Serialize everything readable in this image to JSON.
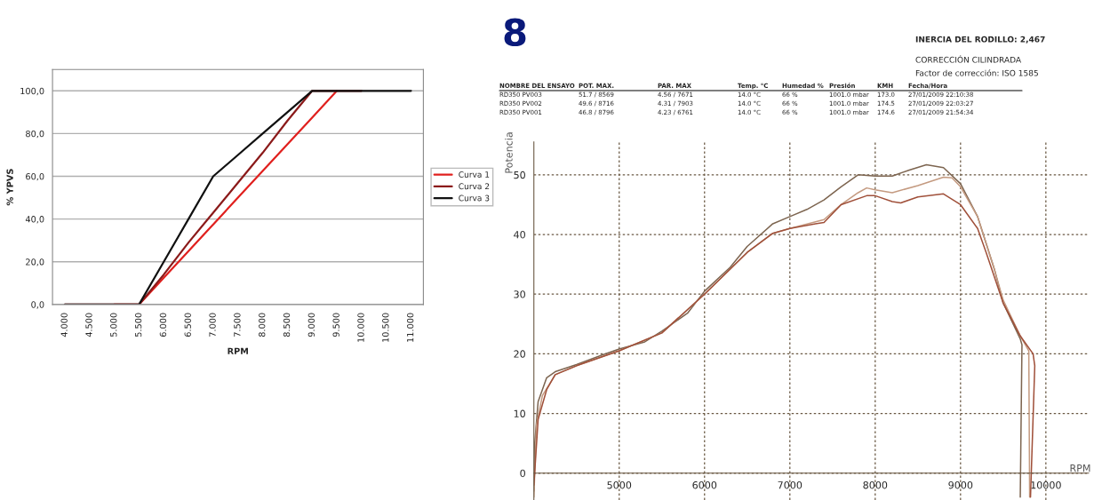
{
  "chart_data": [
    {
      "type": "line",
      "xlabel": "RPM",
      "ylabel": "% YPVS",
      "ylim": [
        0,
        110
      ],
      "categories": [
        "4.000",
        "4.500",
        "5.000",
        "5.500",
        "6.000",
        "6.500",
        "7.000",
        "7.500",
        "8.000",
        "8.500",
        "9.000",
        "9.500",
        "10.000",
        "10.500",
        "11.000"
      ],
      "yticks": [
        {
          "value": 0,
          "label": "0,0"
        },
        {
          "value": 20,
          "label": "20,0"
        },
        {
          "value": 40,
          "label": "40,0"
        },
        {
          "value": 60,
          "label": "60,0"
        },
        {
          "value": 80,
          "label": "80,0"
        },
        {
          "value": 100,
          "label": "100,0"
        }
      ],
      "grid": "y",
      "legend": "right",
      "marker": "none",
      "line_style": "solid",
      "series": [
        {
          "name": "Curva 1",
          "color": "#e0201e",
          "values": [
            null,
            null,
            0,
            0,
            12.5,
            25,
            37.5,
            50,
            62.5,
            75,
            87.5,
            100,
            null,
            null,
            null
          ]
        },
        {
          "name": "Curva 2",
          "color": "#8b1a1a",
          "values": [
            0,
            0,
            0,
            0,
            14,
            29,
            43,
            57,
            71,
            86,
            100,
            100,
            100,
            null,
            null
          ]
        },
        {
          "name": "Curva 3",
          "color": "#111111",
          "values": [
            0,
            0,
            0,
            0,
            20,
            40,
            60,
            70,
            80,
            90,
            100,
            100,
            100,
            100,
            100
          ]
        }
      ]
    },
    {
      "type": "line",
      "xlabel": "RPM",
      "ylabel": "Potencia",
      "xlim": [
        4000,
        10500
      ],
      "ylim": [
        -4.5,
        55.5
      ],
      "xticks": [
        5000,
        6000,
        7000,
        8000,
        9000,
        10000
      ],
      "yticks": [
        0,
        10,
        20,
        30,
        40,
        50
      ],
      "grid": true,
      "marker": "none",
      "line_style": "solid",
      "annotations": [
        "8",
        "INERCIA DEL RODILLO: 2,467",
        "CORRECCIÓN CILINDRADA",
        "Factor de corrección: ISO 1585",
        "NOMBRE DEL ENSAYO",
        "POT. MAX.",
        "PAR. MAX",
        "Temp. °C",
        "Humedad %",
        "Presión",
        "KMH",
        "Fecha/Hora",
        "RD350 PV003",
        "51.7 / 8569",
        "4.56 / 7671",
        "14.0 °C",
        "66 %",
        "1001.0 mbar",
        "173.0",
        "27/01/2009 22:10:38",
        "RD350 PV002",
        "49.6 / 8716",
        "4.31 / 7903",
        "14.0 °C",
        "66 %",
        "1001.0 mbar",
        "174.5",
        "27/01/2009 22:03:27",
        "RD350 PV001",
        "46.8 / 8796",
        "4.23 / 6761",
        "14.0 °C",
        "66 %",
        "1001.0 mbar",
        "174.6",
        "27/01/2009 21:54:34"
      ],
      "series": [
        {
          "color": "#7d6550",
          "x": [
            4000,
            4010,
            4050,
            4150,
            4250,
            4500,
            4800,
            5000,
            5300,
            5500,
            5800,
            6000,
            6300,
            6500,
            6800,
            7000,
            7200,
            7400,
            7600,
            7800,
            8000,
            8200,
            8400,
            8600,
            8800,
            9000,
            9200,
            9300,
            9400,
            9500,
            9600,
            9700,
            9720,
            9700
          ],
          "values": [
            -3,
            5,
            12,
            16,
            17,
            18.2,
            19.8,
            20.8,
            22,
            23.8,
            26.8,
            30.5,
            34.5,
            38,
            41.8,
            43,
            44.2,
            45.8,
            48,
            50,
            49.8,
            49.8,
            50.8,
            51.7,
            51.2,
            48.5,
            43,
            38.5,
            34,
            28.5,
            25.5,
            22.5,
            21.5,
            -4
          ]
        },
        {
          "color": "#c49a80",
          "x": [
            4000,
            4030,
            4100,
            4250,
            4500,
            5000,
            5500,
            6000,
            6500,
            6800,
            7000,
            7400,
            7600,
            7800,
            7900,
            8000,
            8200,
            8500,
            8800,
            8900,
            9000,
            9200,
            9400,
            9500,
            9700,
            9800,
            9810
          ],
          "values": [
            -4,
            8,
            13,
            16.5,
            18,
            20.5,
            23.5,
            30,
            37,
            40.2,
            41,
            42.5,
            45,
            47,
            47.8,
            47.5,
            47,
            48.2,
            49.6,
            49.5,
            48,
            43,
            34,
            29,
            23,
            20.5,
            -4
          ]
        },
        {
          "color": "#a0503a",
          "x": [
            4000,
            4050,
            4150,
            4250,
            4500,
            5000,
            5500,
            6000,
            6500,
            6800,
            7000,
            7300,
            7400,
            7600,
            7900,
            8000,
            8200,
            8300,
            8500,
            8800,
            9000,
            9200,
            9300,
            9500,
            9700,
            9850,
            9870,
            9820
          ],
          "values": [
            -2,
            9,
            14,
            16.5,
            18,
            20.5,
            23.5,
            30,
            37,
            40.2,
            41,
            41.8,
            42,
            45,
            46.5,
            46.5,
            45.5,
            45.3,
            46.3,
            46.8,
            45,
            41,
            37,
            28.5,
            23,
            20,
            18,
            -4
          ]
        }
      ]
    }
  ]
}
